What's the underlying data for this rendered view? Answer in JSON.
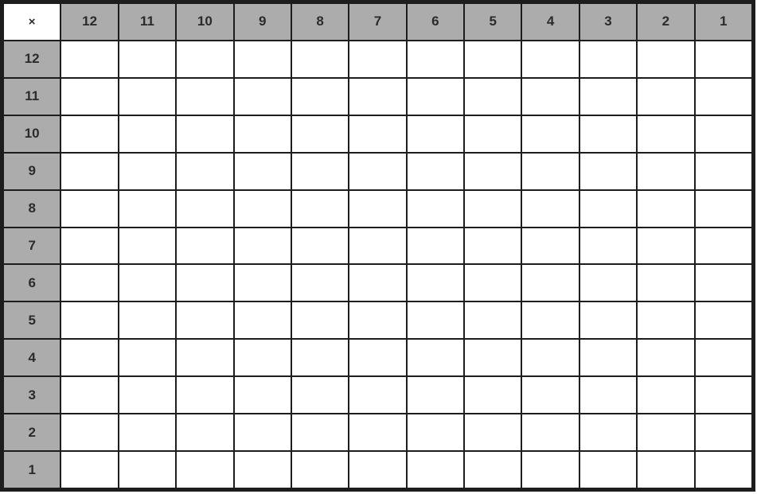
{
  "table": {
    "corner_label": "×",
    "column_headers": [
      "12",
      "11",
      "10",
      "9",
      "8",
      "7",
      "6",
      "5",
      "4",
      "3",
      "2",
      "1"
    ],
    "row_headers": [
      "12",
      "11",
      "10",
      "9",
      "8",
      "7",
      "6",
      "5",
      "4",
      "3",
      "2",
      "1"
    ],
    "body_cell_value": "",
    "colors": {
      "header_bg": "#acacac",
      "grid_line": "#1d1d1d",
      "cell_bg": "#ffffff",
      "text": "#2b2b2b"
    }
  }
}
